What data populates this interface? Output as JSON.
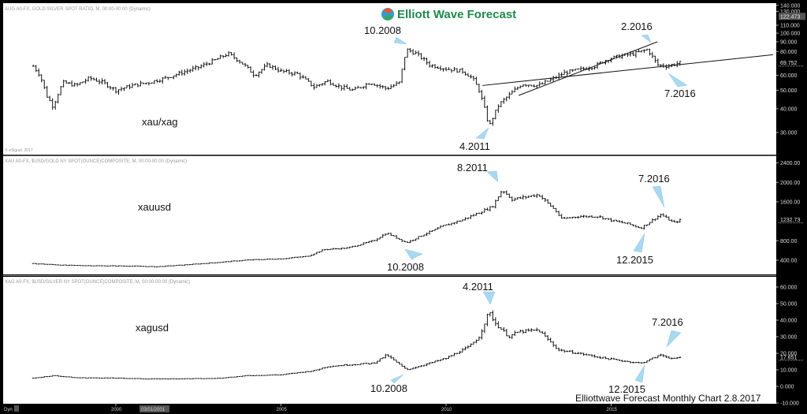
{
  "logo": {
    "text": "Elliott Wave Forecast"
  },
  "footer": "Elliottwave Forecast Monthly Chart 2.8.2017",
  "copyright": "© eSignal, 2017",
  "colors": {
    "arrow": "#a9d8f0",
    "bars": "#111111",
    "axis_bg": "#000000",
    "plot_bg": "#ffffff",
    "logo_text": "#1e8a4a"
  },
  "xaxis": {
    "ticks": [
      "2000",
      "2005",
      "2010",
      "2015"
    ],
    "tick_years": [
      2000,
      2005,
      2010,
      2015
    ],
    "highlight": "03/01/2001",
    "dyn": "Dyn"
  },
  "chart_data": [
    {
      "type": "ohlc",
      "header": "AUG A0-FX, GOLD-SILVER SPOT RATIO, M, 00:00-00:00 (Dynamic)",
      "label": "xau/xag",
      "scale": "log",
      "ylim": [
        27,
        140
      ],
      "yticks": [
        "140.000",
        "130.000",
        "110.000",
        "100.000",
        "90.000",
        "80.000",
        "60.000",
        "50.000",
        "40.000",
        "30.000"
      ],
      "ytick_values": [
        140,
        130,
        110,
        100,
        90,
        80,
        60,
        50,
        40,
        30
      ],
      "last_value": "122.473",
      "last_value_num": 122.473,
      "current_label": "69.752",
      "current_value": 69.752,
      "points": [
        [
          1997.5,
          67
        ],
        [
          1997.7,
          60
        ],
        [
          1997.9,
          47
        ],
        [
          1998.1,
          41
        ],
        [
          1998.4,
          55
        ],
        [
          1998.8,
          53
        ],
        [
          1999.2,
          58
        ],
        [
          1999.6,
          55
        ],
        [
          2000.0,
          50
        ],
        [
          2000.5,
          53
        ],
        [
          2001.0,
          55
        ],
        [
          2001.5,
          58
        ],
        [
          2002.0,
          62
        ],
        [
          2002.5,
          66
        ],
        [
          2003.0,
          72
        ],
        [
          2003.4,
          78
        ],
        [
          2003.8,
          70
        ],
        [
          2004.2,
          60
        ],
        [
          2004.6,
          68
        ],
        [
          2005.0,
          63
        ],
        [
          2005.5,
          61
        ],
        [
          2006.0,
          52
        ],
        [
          2006.4,
          56
        ],
        [
          2006.8,
          52
        ],
        [
          2007.2,
          50
        ],
        [
          2007.7,
          55
        ],
        [
          2008.2,
          51
        ],
        [
          2008.6,
          55
        ],
        [
          2008.8,
          82
        ],
        [
          2009.1,
          78
        ],
        [
          2009.5,
          68
        ],
        [
          2010.0,
          65
        ],
        [
          2010.5,
          63
        ],
        [
          2010.8,
          58
        ],
        [
          2011.0,
          50
        ],
        [
          2011.3,
          32
        ],
        [
          2011.6,
          42
        ],
        [
          2011.9,
          47
        ],
        [
          2012.3,
          54
        ],
        [
          2012.8,
          53
        ],
        [
          2013.2,
          57
        ],
        [
          2013.6,
          62
        ],
        [
          2014.0,
          64
        ],
        [
          2014.5,
          67
        ],
        [
          2014.9,
          73
        ],
        [
          2015.3,
          76
        ],
        [
          2015.7,
          78
        ],
        [
          2016.1,
          82
        ],
        [
          2016.4,
          68
        ],
        [
          2016.7,
          67
        ],
        [
          2017.1,
          70
        ]
      ],
      "annotations": [
        {
          "text": "10.2008",
          "date": 2008.8
        },
        {
          "text": "2.2016",
          "date": 2016.1
        },
        {
          "text": "7.2016",
          "date": 2016.5
        },
        {
          "text": "4.2011",
          "date": 2011.3
        }
      ],
      "trendlines": [
        {
          "from": [
            2011.1,
            53
          ],
          "to": [
            2019.9,
            77
          ]
        },
        {
          "from": [
            2012.2,
            47
          ],
          "to": [
            2016.4,
            90
          ]
        }
      ]
    },
    {
      "type": "ohlc",
      "header": "XAU A0-FX, $USD/GOLD NY SPOT(OUNCE)COMPOSITE, M, 00:00-00:00 (Dynamic)",
      "label": "xauusd",
      "scale": "linear",
      "ylim": [
        0,
        2700
      ],
      "yticks": [
        "2400.00",
        "2000.00",
        "1600.00",
        "800.00",
        "400.00"
      ],
      "ytick_values": [
        2400,
        2000,
        1600,
        800,
        400
      ],
      "current_label": "1232.73",
      "current_value": 1232.73,
      "points": [
        [
          1997.5,
          330
        ],
        [
          1998.5,
          295
        ],
        [
          1999.5,
          285
        ],
        [
          2000.5,
          280
        ],
        [
          2001.2,
          265
        ],
        [
          2002.0,
          300
        ],
        [
          2003.0,
          350
        ],
        [
          2004.0,
          405
        ],
        [
          2005.0,
          430
        ],
        [
          2005.8,
          480
        ],
        [
          2006.3,
          620
        ],
        [
          2007.0,
          650
        ],
        [
          2007.8,
          800
        ],
        [
          2008.2,
          960
        ],
        [
          2008.8,
          760
        ],
        [
          2009.3,
          920
        ],
        [
          2009.9,
          1100
        ],
        [
          2010.5,
          1230
        ],
        [
          2011.0,
          1380
        ],
        [
          2011.4,
          1500
        ],
        [
          2011.7,
          1850
        ],
        [
          2012.0,
          1650
        ],
        [
          2012.8,
          1750
        ],
        [
          2013.3,
          1430
        ],
        [
          2013.5,
          1250
        ],
        [
          2014.0,
          1300
        ],
        [
          2014.6,
          1300
        ],
        [
          2015.0,
          1220
        ],
        [
          2015.5,
          1150
        ],
        [
          2015.9,
          1060
        ],
        [
          2016.5,
          1340
        ],
        [
          2016.9,
          1170
        ],
        [
          2017.1,
          1230
        ]
      ],
      "annotations": [
        {
          "text": "8.2011",
          "date": 2011.7
        },
        {
          "text": "7.2016",
          "date": 2016.5
        },
        {
          "text": "10.2008",
          "date": 2008.8
        },
        {
          "text": "12.2015",
          "date": 2015.9
        }
      ]
    },
    {
      "type": "ohlc",
      "header": "XAG A0-FX, $USD/SILVER NY SPOT(OUNCE)COMPOSITE, M, 00:00-00:00 (Dynamic)",
      "label": "xagusd",
      "scale": "linear",
      "ylim": [
        -10,
        60
      ],
      "yticks": [
        "60.000",
        "50.000",
        "40.000",
        "30.000",
        "20.000",
        "10.000",
        "0.000",
        "-10.000"
      ],
      "ytick_values": [
        60,
        50,
        40,
        30,
        20,
        10,
        0,
        -10
      ],
      "current_label": "17.651",
      "current_value": 17.651,
      "points": [
        [
          1997.5,
          5
        ],
        [
          1998.1,
          6.5
        ],
        [
          1998.8,
          5.2
        ],
        [
          2000.0,
          5
        ],
        [
          2001.0,
          4.5
        ],
        [
          2002.0,
          4.6
        ],
        [
          2003.0,
          4.8
        ],
        [
          2004.0,
          6.5
        ],
        [
          2005.0,
          7
        ],
        [
          2006.0,
          9.5
        ],
        [
          2006.4,
          12
        ],
        [
          2007.0,
          13
        ],
        [
          2007.8,
          14
        ],
        [
          2008.2,
          19
        ],
        [
          2008.8,
          10
        ],
        [
          2009.5,
          14
        ],
        [
          2010.0,
          17
        ],
        [
          2010.7,
          24
        ],
        [
          2011.0,
          30
        ],
        [
          2011.3,
          45
        ],
        [
          2011.5,
          38
        ],
        [
          2011.9,
          30
        ],
        [
          2012.2,
          33
        ],
        [
          2012.8,
          34
        ],
        [
          2013.4,
          22
        ],
        [
          2014.0,
          20
        ],
        [
          2014.8,
          17
        ],
        [
          2015.5,
          15
        ],
        [
          2015.9,
          14
        ],
        [
          2016.5,
          19
        ],
        [
          2016.9,
          16.5
        ],
        [
          2017.1,
          17.6
        ]
      ],
      "annotations": [
        {
          "text": "4.2011",
          "date": 2011.3
        },
        {
          "text": "7.2016",
          "date": 2016.5
        },
        {
          "text": "10.2008",
          "date": 2008.8
        },
        {
          "text": "12.2015",
          "date": 2015.9
        }
      ]
    }
  ]
}
